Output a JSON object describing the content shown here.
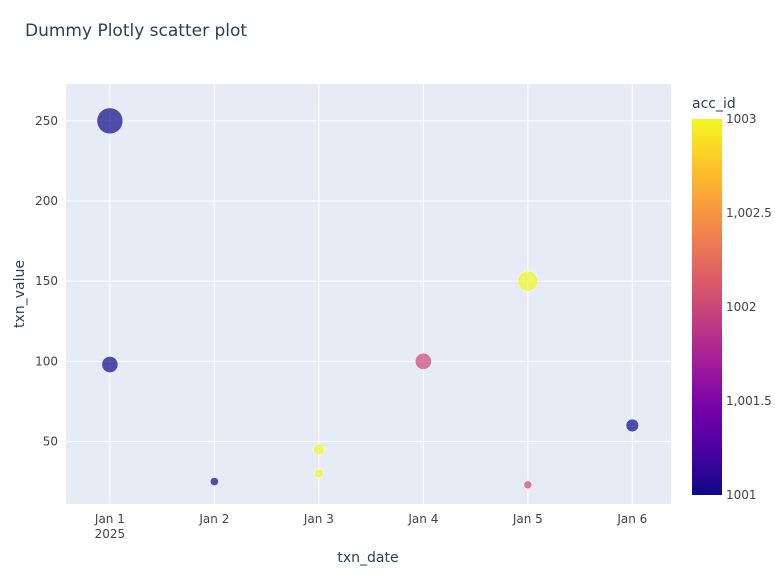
{
  "chart_data": {
    "type": "scatter",
    "title": "Dummy Plotly scatter plot",
    "xlabel": "txn_date",
    "ylabel": "txn_value",
    "x_ticks": [
      {
        "day": 0,
        "label": "Jan 1",
        "sublabel": "2025"
      },
      {
        "day": 1,
        "label": "Jan 2",
        "sublabel": ""
      },
      {
        "day": 2,
        "label": "Jan 3",
        "sublabel": ""
      },
      {
        "day": 3,
        "label": "Jan 4",
        "sublabel": ""
      },
      {
        "day": 4,
        "label": "Jan 5",
        "sublabel": ""
      },
      {
        "day": 5,
        "label": "Jan 6",
        "sublabel": ""
      }
    ],
    "xlim_days": [
      -0.42,
      5.37
    ],
    "y_ticks": [
      50,
      100,
      150,
      200,
      250
    ],
    "ylim": [
      11,
      273
    ],
    "grid": true,
    "points": [
      {
        "date": "2025-01-01",
        "day": 0,
        "txn_value": 250,
        "acc_id": 1001
      },
      {
        "date": "2025-01-01",
        "day": 0,
        "txn_value": 98,
        "acc_id": 1001
      },
      {
        "date": "2025-01-02",
        "day": 1,
        "txn_value": 25,
        "acc_id": 1001
      },
      {
        "date": "2025-01-03",
        "day": 2,
        "txn_value": 45,
        "acc_id": 1003
      },
      {
        "date": "2025-01-03",
        "day": 2,
        "txn_value": 30,
        "acc_id": 1003
      },
      {
        "date": "2025-01-04",
        "day": 3,
        "txn_value": 100,
        "acc_id": 1002
      },
      {
        "date": "2025-01-05",
        "day": 4,
        "txn_value": 150,
        "acc_id": 1003
      },
      {
        "date": "2025-01-05",
        "day": 4,
        "txn_value": 23,
        "acc_id": 1002
      },
      {
        "date": "2025-01-06",
        "day": 5,
        "txn_value": 60,
        "acc_id": 1001
      }
    ],
    "colorbar": {
      "title": "acc_id",
      "min": 1001,
      "max": 1003,
      "ticks": [
        {
          "value": 1003,
          "label": "1003"
        },
        {
          "value": 1002.5,
          "label": "1,002.5"
        },
        {
          "value": 1002,
          "label": "1002"
        },
        {
          "value": 1001.5,
          "label": "1,001.5"
        },
        {
          "value": 1001,
          "label": "1001"
        }
      ],
      "colorscale": [
        "#0d0887",
        "#46039f",
        "#7201a8",
        "#9c179e",
        "#bd3786",
        "#d8576b",
        "#ed7953",
        "#fb9f3a",
        "#fdca26",
        "#f0f921"
      ]
    },
    "colors": {
      "plot_bg": "#e5ecf6",
      "grid": "#ffffff",
      "text": "#2a3f5f",
      "tick_text": "#444444"
    }
  }
}
